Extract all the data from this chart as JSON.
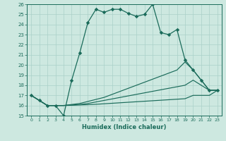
{
  "xlabel": "Humidex (Indice chaleur)",
  "x": [
    0,
    1,
    2,
    3,
    4,
    5,
    6,
    7,
    8,
    9,
    10,
    11,
    12,
    13,
    14,
    15,
    16,
    17,
    18,
    19,
    20,
    21,
    22,
    23
  ],
  "line_main": [
    17.0,
    16.5,
    16.0,
    16.0,
    15.0,
    18.5,
    21.2,
    24.2,
    25.5,
    25.2,
    25.5,
    25.5,
    25.1,
    24.8,
    25.0,
    26.0,
    23.2,
    23.0,
    23.5,
    20.5,
    19.5,
    18.5,
    17.5,
    17.5
  ],
  "line2": [
    17.0,
    16.5,
    16.0,
    16.0,
    16.0,
    16.1,
    16.2,
    16.4,
    16.6,
    16.8,
    17.1,
    17.4,
    17.7,
    18.0,
    18.3,
    18.6,
    18.9,
    19.2,
    19.5,
    20.3,
    19.5,
    18.5,
    17.5,
    17.5
  ],
  "line3": [
    17.0,
    16.5,
    16.0,
    16.0,
    16.0,
    16.05,
    16.1,
    16.2,
    16.35,
    16.5,
    16.65,
    16.8,
    16.95,
    17.1,
    17.25,
    17.4,
    17.55,
    17.7,
    17.85,
    18.0,
    18.5,
    18.0,
    17.5,
    17.5
  ],
  "line4": [
    17.0,
    16.5,
    16.0,
    16.0,
    16.0,
    16.02,
    16.05,
    16.08,
    16.12,
    16.17,
    16.22,
    16.27,
    16.32,
    16.37,
    16.42,
    16.47,
    16.52,
    16.57,
    16.62,
    16.67,
    17.0,
    17.0,
    17.0,
    17.5
  ],
  "line_color": "#1a6b5a",
  "bg_color": "#cde8e0",
  "grid_color": "#aad0c8",
  "ylim": [
    15,
    26
  ],
  "xlim": [
    -0.5,
    23.5
  ],
  "yticks": [
    15,
    16,
    17,
    18,
    19,
    20,
    21,
    22,
    23,
    24,
    25,
    26
  ],
  "xticks": [
    0,
    1,
    2,
    3,
    4,
    5,
    6,
    7,
    8,
    9,
    10,
    11,
    12,
    13,
    14,
    15,
    16,
    17,
    18,
    19,
    20,
    21,
    22,
    23
  ]
}
